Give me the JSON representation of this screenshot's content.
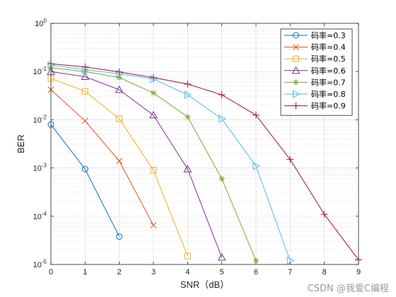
{
  "chart_data": {
    "type": "line",
    "title": "",
    "xlabel": "SNR（dB）",
    "ylabel": "BER",
    "x_scale": "linear",
    "y_scale": "log",
    "xlim": [
      0,
      9
    ],
    "ylim": [
      1e-05,
      1
    ],
    "xticks": [
      0,
      1,
      2,
      3,
      4,
      5,
      6,
      7,
      8,
      9
    ],
    "yticks": [
      {
        "value": 1,
        "base": "10",
        "exp": "0"
      },
      {
        "value": 0.1,
        "base": "10",
        "exp": "-1"
      },
      {
        "value": 0.01,
        "base": "10",
        "exp": "-2"
      },
      {
        "value": 0.001,
        "base": "10",
        "exp": "-3"
      },
      {
        "value": 0.0001,
        "base": "10",
        "exp": "-4"
      },
      {
        "value": 1e-05,
        "base": "10",
        "exp": "-5"
      }
    ],
    "grid": true,
    "minor_grid": true,
    "legend_position": "top-right",
    "series": [
      {
        "name": "码率=0.3",
        "color": "#0072BD",
        "marker": "circle",
        "x": [
          0,
          1,
          2
        ],
        "y": [
          0.008,
          0.00095,
          3.8e-05
        ]
      },
      {
        "name": "码率=0.4",
        "color": "#D95319",
        "marker": "x",
        "x": [
          0,
          1,
          2,
          3
        ],
        "y": [
          0.042,
          0.0095,
          0.0014,
          6.5e-05
        ]
      },
      {
        "name": "码率=0.5",
        "color": "#EDB120",
        "marker": "square",
        "x": [
          0,
          1,
          2,
          3,
          4
        ],
        "y": [
          0.072,
          0.039,
          0.0105,
          0.0009,
          1.5e-05
        ]
      },
      {
        "name": "码率=0.6",
        "color": "#7E2F8E",
        "marker": "triangle-up",
        "x": [
          0,
          1,
          2,
          3,
          4,
          5
        ],
        "y": [
          0.1,
          0.078,
          0.042,
          0.0125,
          0.00095,
          1.4e-05
        ]
      },
      {
        "name": "码率=0.7",
        "color": "#77AC30",
        "marker": "asterisk",
        "x": [
          0,
          1,
          2,
          3,
          4,
          5,
          6
        ],
        "y": [
          0.12,
          0.1,
          0.075,
          0.036,
          0.0115,
          0.0006,
          1.2e-05
        ]
      },
      {
        "name": "码率=0.8",
        "color": "#4DBEEE",
        "marker": "triangle-right",
        "x": [
          0,
          1,
          2,
          3,
          4,
          5,
          6,
          7
        ],
        "y": [
          0.135,
          0.11,
          0.09,
          0.07,
          0.033,
          0.0105,
          0.0011,
          1.2e-05
        ]
      },
      {
        "name": "码率=0.9",
        "color": "#A2142F",
        "marker": "plus",
        "x": [
          0,
          1,
          2,
          3,
          4,
          5,
          6,
          7,
          8,
          9
        ],
        "y": [
          0.145,
          0.125,
          0.098,
          0.075,
          0.055,
          0.033,
          0.0125,
          0.0015,
          0.00011,
          1.25e-05
        ]
      }
    ]
  },
  "watermark": "CSDN @我爱C编程"
}
